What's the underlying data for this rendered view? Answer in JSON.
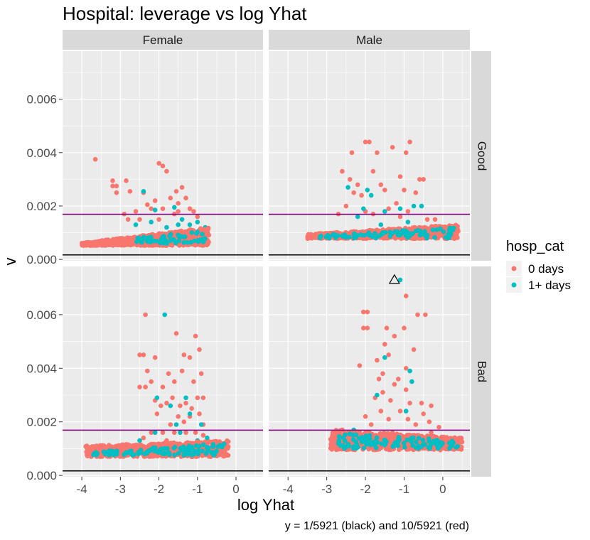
{
  "chart_data": {
    "type": "scatter",
    "title": "Hospital: leverage vs log Yhat",
    "xlabel": "log Yhat",
    "ylabel": "v",
    "caption": "y = 1/5921 (black) and 10/5921 (red)",
    "xlim": [
      -4.5,
      0.7
    ],
    "ylim": [
      -5e-05,
      0.0078
    ],
    "x_ticks": [
      -4,
      -3,
      -2,
      -1,
      0
    ],
    "x_tick_labels": [
      "-4",
      "-3",
      "-2",
      "-1",
      "0"
    ],
    "y_ticks": [
      0.0,
      0.002,
      0.004,
      0.006
    ],
    "y_tick_labels": [
      "0.000",
      "0.002",
      "0.004",
      "0.006"
    ],
    "grid": true,
    "legend": {
      "title": "hosp_cat",
      "position": "right",
      "entries": [
        {
          "label": "0 days",
          "color": "#F8766D"
        },
        {
          "label": "1+ days",
          "color": "#00BFC4"
        }
      ]
    },
    "facet_cols": [
      "Female",
      "Male"
    ],
    "facet_rows": [
      "Good",
      "Bad"
    ],
    "hlines": [
      {
        "y": 0.000169,
        "color": "#000000"
      },
      {
        "y": 0.00169,
        "color": "#800080"
      }
    ],
    "colors": {
      "red": "#F8766D",
      "cyan": "#00BFC4",
      "panel": "#EBEBEB",
      "strip": "#D9D9D9"
    },
    "panels": [
      {
        "col": "Female",
        "row": "Good",
        "series": [
          {
            "name": "0 days",
            "points": [
              [
                -3.65,
                0.00375
              ],
              [
                -3.2,
                0.00295
              ],
              [
                -3.2,
                0.00275
              ],
              [
                -3.1,
                0.00275
              ],
              [
                -3.1,
                0.0025
              ],
              [
                -2.85,
                0.00295
              ],
              [
                -2.75,
                0.00255
              ],
              [
                -2.4,
                0.0025
              ],
              [
                -2.3,
                0.00205
              ],
              [
                -2.1,
                0.0022
              ],
              [
                -2.0,
                0.0036
              ],
              [
                -1.9,
                0.0035
              ],
              [
                -1.8,
                0.0033
              ],
              [
                -1.7,
                0.0023
              ],
              [
                -1.55,
                0.00255
              ],
              [
                -1.5,
                0.0021
              ],
              [
                -1.4,
                0.0027
              ],
              [
                -1.3,
                0.0023
              ],
              [
                -1.2,
                0.0019
              ],
              [
                -1.1,
                0.0018
              ],
              [
                -2.9,
                0.0017
              ],
              [
                -2.6,
                0.0018
              ],
              [
                -2.2,
                0.0019
              ],
              [
                -1.9,
                0.0019
              ],
              [
                -1.6,
                0.0017
              ],
              [
                -1.5,
                0.0018
              ],
              [
                -1.0,
                0.0016
              ],
              [
                -2.8,
                0.0015
              ],
              [
                -2.5,
                0.0015
              ],
              [
                -2.0,
                0.0015
              ]
            ]
          },
          {
            "name": "1+ days",
            "points": [
              [
                -2.4,
                0.00255
              ],
              [
                -2.1,
                0.00185
              ],
              [
                -1.6,
                0.00195
              ],
              [
                -1.4,
                0.0015
              ],
              [
                -1.2,
                0.0013
              ],
              [
                -1.0,
                0.0014
              ],
              [
                -0.8,
                0.0012
              ],
              [
                -2.2,
                0.0014
              ],
              [
                -1.8,
                0.0012
              ],
              [
                -1.5,
                0.0013
              ],
              [
                -0.95,
                0.0011
              ],
              [
                -2.6,
                0.0013
              ]
            ]
          }
        ]
      },
      {
        "col": "Male",
        "row": "Good",
        "series": [
          {
            "name": "0 days",
            "points": [
              [
                -2.0,
                0.0044
              ],
              [
                -1.9,
                0.0044
              ],
              [
                -0.85,
                0.0044
              ],
              [
                -1.7,
                0.004
              ],
              [
                -1.3,
                0.0042
              ],
              [
                -0.95,
                0.004
              ],
              [
                -2.35,
                0.004
              ],
              [
                -2.6,
                0.0033
              ],
              [
                -1.8,
                0.0033
              ],
              [
                -2.4,
                0.003
              ],
              [
                -2.2,
                0.0028
              ],
              [
                -1.6,
                0.0028
              ],
              [
                -1.1,
                0.0031
              ],
              [
                -0.6,
                0.003
              ],
              [
                -0.5,
                0.003
              ],
              [
                -2.3,
                0.0025
              ],
              [
                -2.1,
                0.0024
              ],
              [
                -1.5,
                0.0026
              ],
              [
                -1.0,
                0.0026
              ],
              [
                -0.7,
                0.0025
              ],
              [
                -2.5,
                0.002
              ],
              [
                -2.0,
                0.0018
              ],
              [
                -1.4,
                0.0019
              ],
              [
                -1.2,
                0.0021
              ],
              [
                -0.9,
                0.0018
              ],
              [
                -2.7,
                0.0017
              ],
              [
                -1.8,
                0.0017
              ],
              [
                -1.1,
                0.0016
              ],
              [
                -0.4,
                0.0015
              ],
              [
                -0.2,
                0.0015
              ]
            ]
          },
          {
            "name": "1+ days",
            "points": [
              [
                -2.45,
                0.0027
              ],
              [
                -2.05,
                0.0019
              ],
              [
                -1.95,
                0.0026
              ],
              [
                -1.85,
                0.0024
              ],
              [
                -1.5,
                0.0018
              ],
              [
                -1.1,
                0.0019
              ],
              [
                -0.75,
                0.002
              ],
              [
                -0.55,
                0.002
              ],
              [
                -2.2,
                0.0016
              ],
              [
                -0.3,
                0.0012
              ],
              [
                -1.6,
                0.0013
              ],
              [
                -0.9,
                0.0014
              ]
            ]
          }
        ]
      },
      {
        "col": "Female",
        "row": "Bad",
        "series": [
          {
            "name": "0 days",
            "points": [
              [
                -2.35,
                0.006
              ],
              [
                -1.55,
                0.0053
              ],
              [
                -1.05,
                0.0052
              ],
              [
                -2.5,
                0.0045
              ],
              [
                -2.4,
                0.0045
              ],
              [
                -1.35,
                0.0045
              ],
              [
                -0.95,
                0.0047
              ],
              [
                -2.1,
                0.0044
              ],
              [
                -1.2,
                0.0044
              ],
              [
                -2.3,
                0.0039
              ],
              [
                -1.75,
                0.0038
              ],
              [
                -1.4,
                0.0039
              ],
              [
                -0.9,
                0.0038
              ],
              [
                -2.5,
                0.0033
              ],
              [
                -2.35,
                0.0033
              ],
              [
                -2.2,
                0.0035
              ],
              [
                -1.9,
                0.0033
              ],
              [
                -1.6,
                0.0035
              ],
              [
                -1.1,
                0.0035
              ],
              [
                -2.1,
                0.0028
              ],
              [
                -1.8,
                0.0027
              ],
              [
                -1.65,
                0.0029
              ],
              [
                -1.3,
                0.0027
              ],
              [
                -1.0,
                0.0029
              ],
              [
                -0.85,
                0.0029
              ],
              [
                -1.95,
                0.0026
              ],
              [
                -1.45,
                0.0026
              ],
              [
                -1.15,
                0.0025
              ],
              [
                -2.05,
                0.0023
              ],
              [
                -1.5,
                0.0022
              ],
              [
                -1.2,
                0.0022
              ],
              [
                -0.95,
                0.0023
              ],
              [
                -1.7,
                0.0019
              ],
              [
                -1.35,
                0.002
              ],
              [
                -0.85,
                0.0019
              ],
              [
                -2.2,
                0.0016
              ],
              [
                -1.9,
                0.0016
              ],
              [
                -1.6,
                0.0016
              ],
              [
                -1.3,
                0.0016
              ],
              [
                -1.05,
                0.0016
              ],
              [
                -0.85,
                0.0015
              ],
              [
                -2.4,
                0.0014
              ],
              [
                -1.8,
                0.0013
              ]
            ]
          },
          {
            "name": "1+ days",
            "points": [
              [
                -1.85,
                0.006
              ],
              [
                -2.05,
                0.0029
              ],
              [
                -1.7,
                0.0026
              ],
              [
                -1.3,
                0.0029
              ],
              [
                -1.55,
                0.0019
              ],
              [
                -1.2,
                0.0023
              ],
              [
                -0.9,
                0.0019
              ],
              [
                -2.1,
                0.0016
              ],
              [
                -1.45,
                0.0016
              ],
              [
                -0.75,
                0.0014
              ],
              [
                -2.5,
                0.0013
              ],
              [
                -1.0,
                0.0013
              ]
            ]
          }
        ]
      },
      {
        "col": "Male",
        "row": "Bad",
        "series": [
          {
            "name": "0 days",
            "points": [
              [
                -0.95,
                0.0067
              ],
              [
                -2.05,
                0.0061
              ],
              [
                -1.95,
                0.0061
              ],
              [
                -0.65,
                0.006
              ],
              [
                -0.45,
                0.006
              ],
              [
                -2.05,
                0.0055
              ],
              [
                -1.95,
                0.0055
              ],
              [
                -1.45,
                0.0055
              ],
              [
                -1.0,
                0.0055
              ],
              [
                -1.5,
                0.0049
              ],
              [
                -1.25,
                0.0052
              ],
              [
                -0.75,
                0.0047
              ],
              [
                -1.4,
                0.0045
              ],
              [
                -1.7,
                0.0043
              ],
              [
                -2.15,
                0.0041
              ],
              [
                -0.95,
                0.004
              ],
              [
                -1.55,
                0.0038
              ],
              [
                -1.15,
                0.0036
              ],
              [
                -1.65,
                0.0036
              ],
              [
                -1.25,
                0.0034
              ],
              [
                -1.55,
                0.0031
              ],
              [
                -0.95,
                0.0032
              ],
              [
                -1.35,
                0.0028
              ],
              [
                -1.75,
                0.0029
              ],
              [
                -0.85,
                0.0027
              ],
              [
                -0.55,
                0.0027
              ],
              [
                -0.3,
                0.0026
              ],
              [
                -1.6,
                0.0024
              ],
              [
                -1.1,
                0.0024
              ],
              [
                -0.5,
                0.0023
              ],
              [
                -2.0,
                0.0022
              ],
              [
                -1.4,
                0.0021
              ],
              [
                -0.9,
                0.0021
              ],
              [
                -0.35,
                0.002
              ],
              [
                -1.85,
                0.0019
              ],
              [
                -0.7,
                0.0019
              ],
              [
                -0.1,
                0.0018
              ],
              [
                -2.6,
                0.0017
              ],
              [
                -2.35,
                0.0016
              ],
              [
                -1.3,
                0.0016
              ],
              [
                -0.3,
                0.0016
              ]
            ]
          },
          {
            "name": "1+ days",
            "points": [
              [
                -1.1,
                0.0073
              ],
              [
                -1.5,
                0.0044
              ],
              [
                -0.85,
                0.0039
              ],
              [
                -0.8,
                0.0035
              ],
              [
                -1.7,
                0.003
              ],
              [
                -0.95,
                0.0024
              ],
              [
                -2.3,
                0.0017
              ],
              [
                -1.3,
                0.0014
              ],
              [
                -0.6,
                0.0013
              ],
              [
                -0.2,
                0.0011
              ],
              [
                -1.9,
                0.0012
              ]
            ]
          }
        ]
      }
    ],
    "annotation": {
      "shape": "triangle",
      "panel": "Male-Bad",
      "x": -1.25,
      "y": 0.0073
    }
  }
}
